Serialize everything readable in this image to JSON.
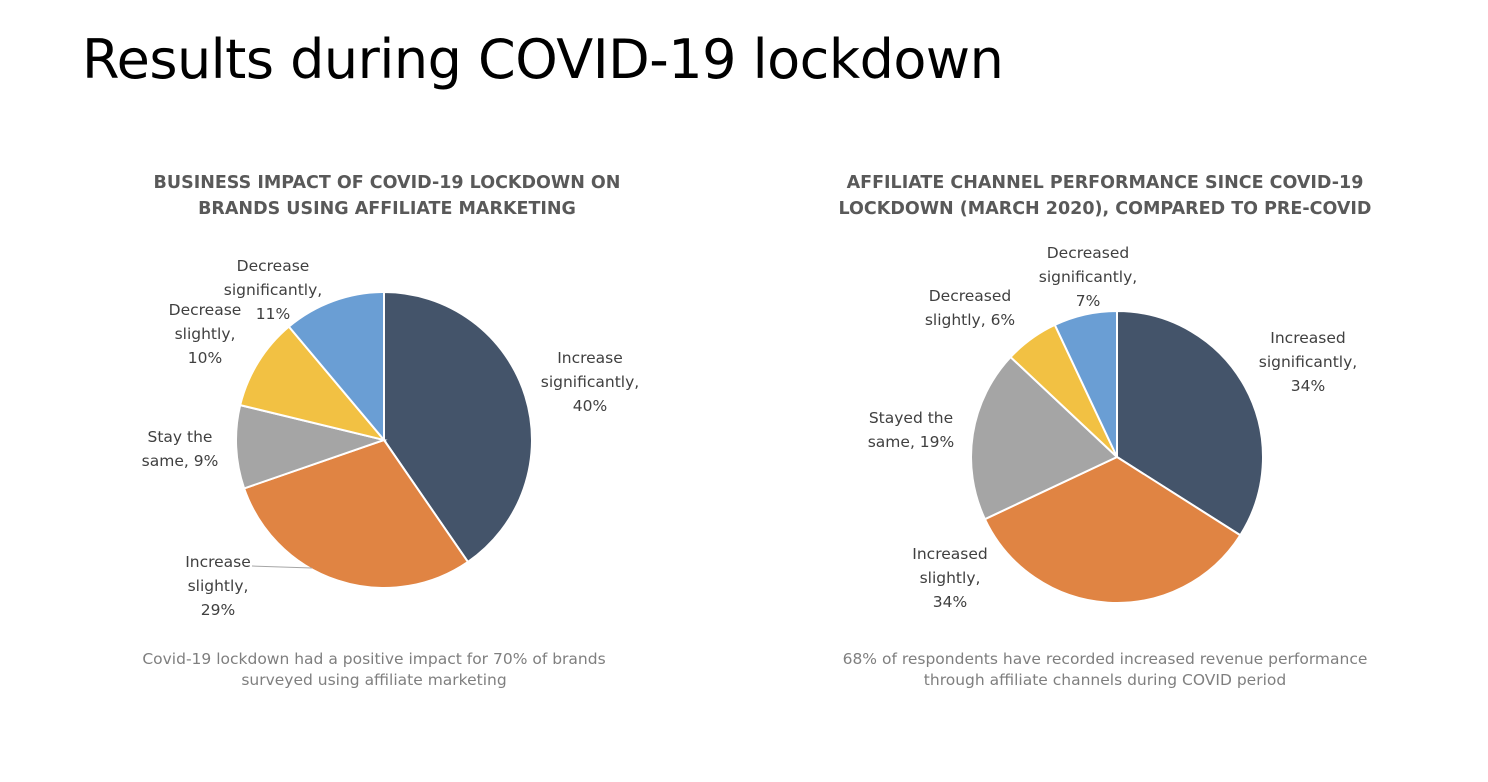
{
  "page": {
    "title": "Results during COVID-19 lockdown"
  },
  "colors": {
    "increase_significantly": "#44546A",
    "increase_slightly": "#E08443",
    "stay_same": "#A5A5A5",
    "decrease_slightly": "#F2C143",
    "decrease_significantly": "#6A9ED4"
  },
  "chart_data": [
    {
      "type": "pie",
      "title": "BUSINESS IMPACT OF COVID-19 LOCKDOWN ON\nBRANDS USING AFFILIATE MARKETING",
      "caption": "Covid-19 lockdown had a positive impact for 70% of brands\nsurveyed using affiliate marketing",
      "slices": [
        {
          "label": "Increase significantly",
          "value": 40,
          "color": "#44546A",
          "data_label": [
            "Increase",
            "significantly,",
            "40%"
          ]
        },
        {
          "label": "Increase slightly",
          "value": 29,
          "color": "#E08443",
          "data_label": [
            "Increase",
            "slightly,",
            "29%"
          ]
        },
        {
          "label": "Stay the same",
          "value": 9,
          "color": "#A5A5A5",
          "data_label": [
            "Stay the",
            "same, 9%"
          ]
        },
        {
          "label": "Decrease slightly",
          "value": 10,
          "color": "#F2C143",
          "data_label": [
            "Decrease",
            "slightly,",
            "10%"
          ]
        },
        {
          "label": "Decrease significantly",
          "value": 11,
          "color": "#6A9ED4",
          "data_label": [
            "Decrease",
            "significantly,",
            "11%"
          ]
        }
      ]
    },
    {
      "type": "pie",
      "title": "AFFILIATE CHANNEL PERFORMANCE SINCE COVID-19\nLOCKDOWN (MARCH 2020), COMPARED TO PRE-COVID",
      "caption": "68% of respondents have recorded increased revenue performance\nthrough affiliate channels during COVID period",
      "slices": [
        {
          "label": "Increased significantly",
          "value": 34,
          "color": "#44546A",
          "data_label": [
            "Increased",
            "significantly,",
            "34%"
          ]
        },
        {
          "label": "Increased slightly",
          "value": 34,
          "color": "#E08443",
          "data_label": [
            "Increased",
            "slightly,",
            "34%"
          ]
        },
        {
          "label": "Stayed the same",
          "value": 19,
          "color": "#A5A5A5",
          "data_label": [
            "Stayed the",
            "same, 19%"
          ]
        },
        {
          "label": "Decreased slightly",
          "value": 6,
          "color": "#F2C143",
          "data_label": [
            "Decreased",
            "slightly, 6%"
          ]
        },
        {
          "label": "Decreased significantly",
          "value": 7,
          "color": "#6A9ED4",
          "data_label": [
            "Decreased",
            "significantly,",
            "7%"
          ]
        }
      ]
    }
  ]
}
